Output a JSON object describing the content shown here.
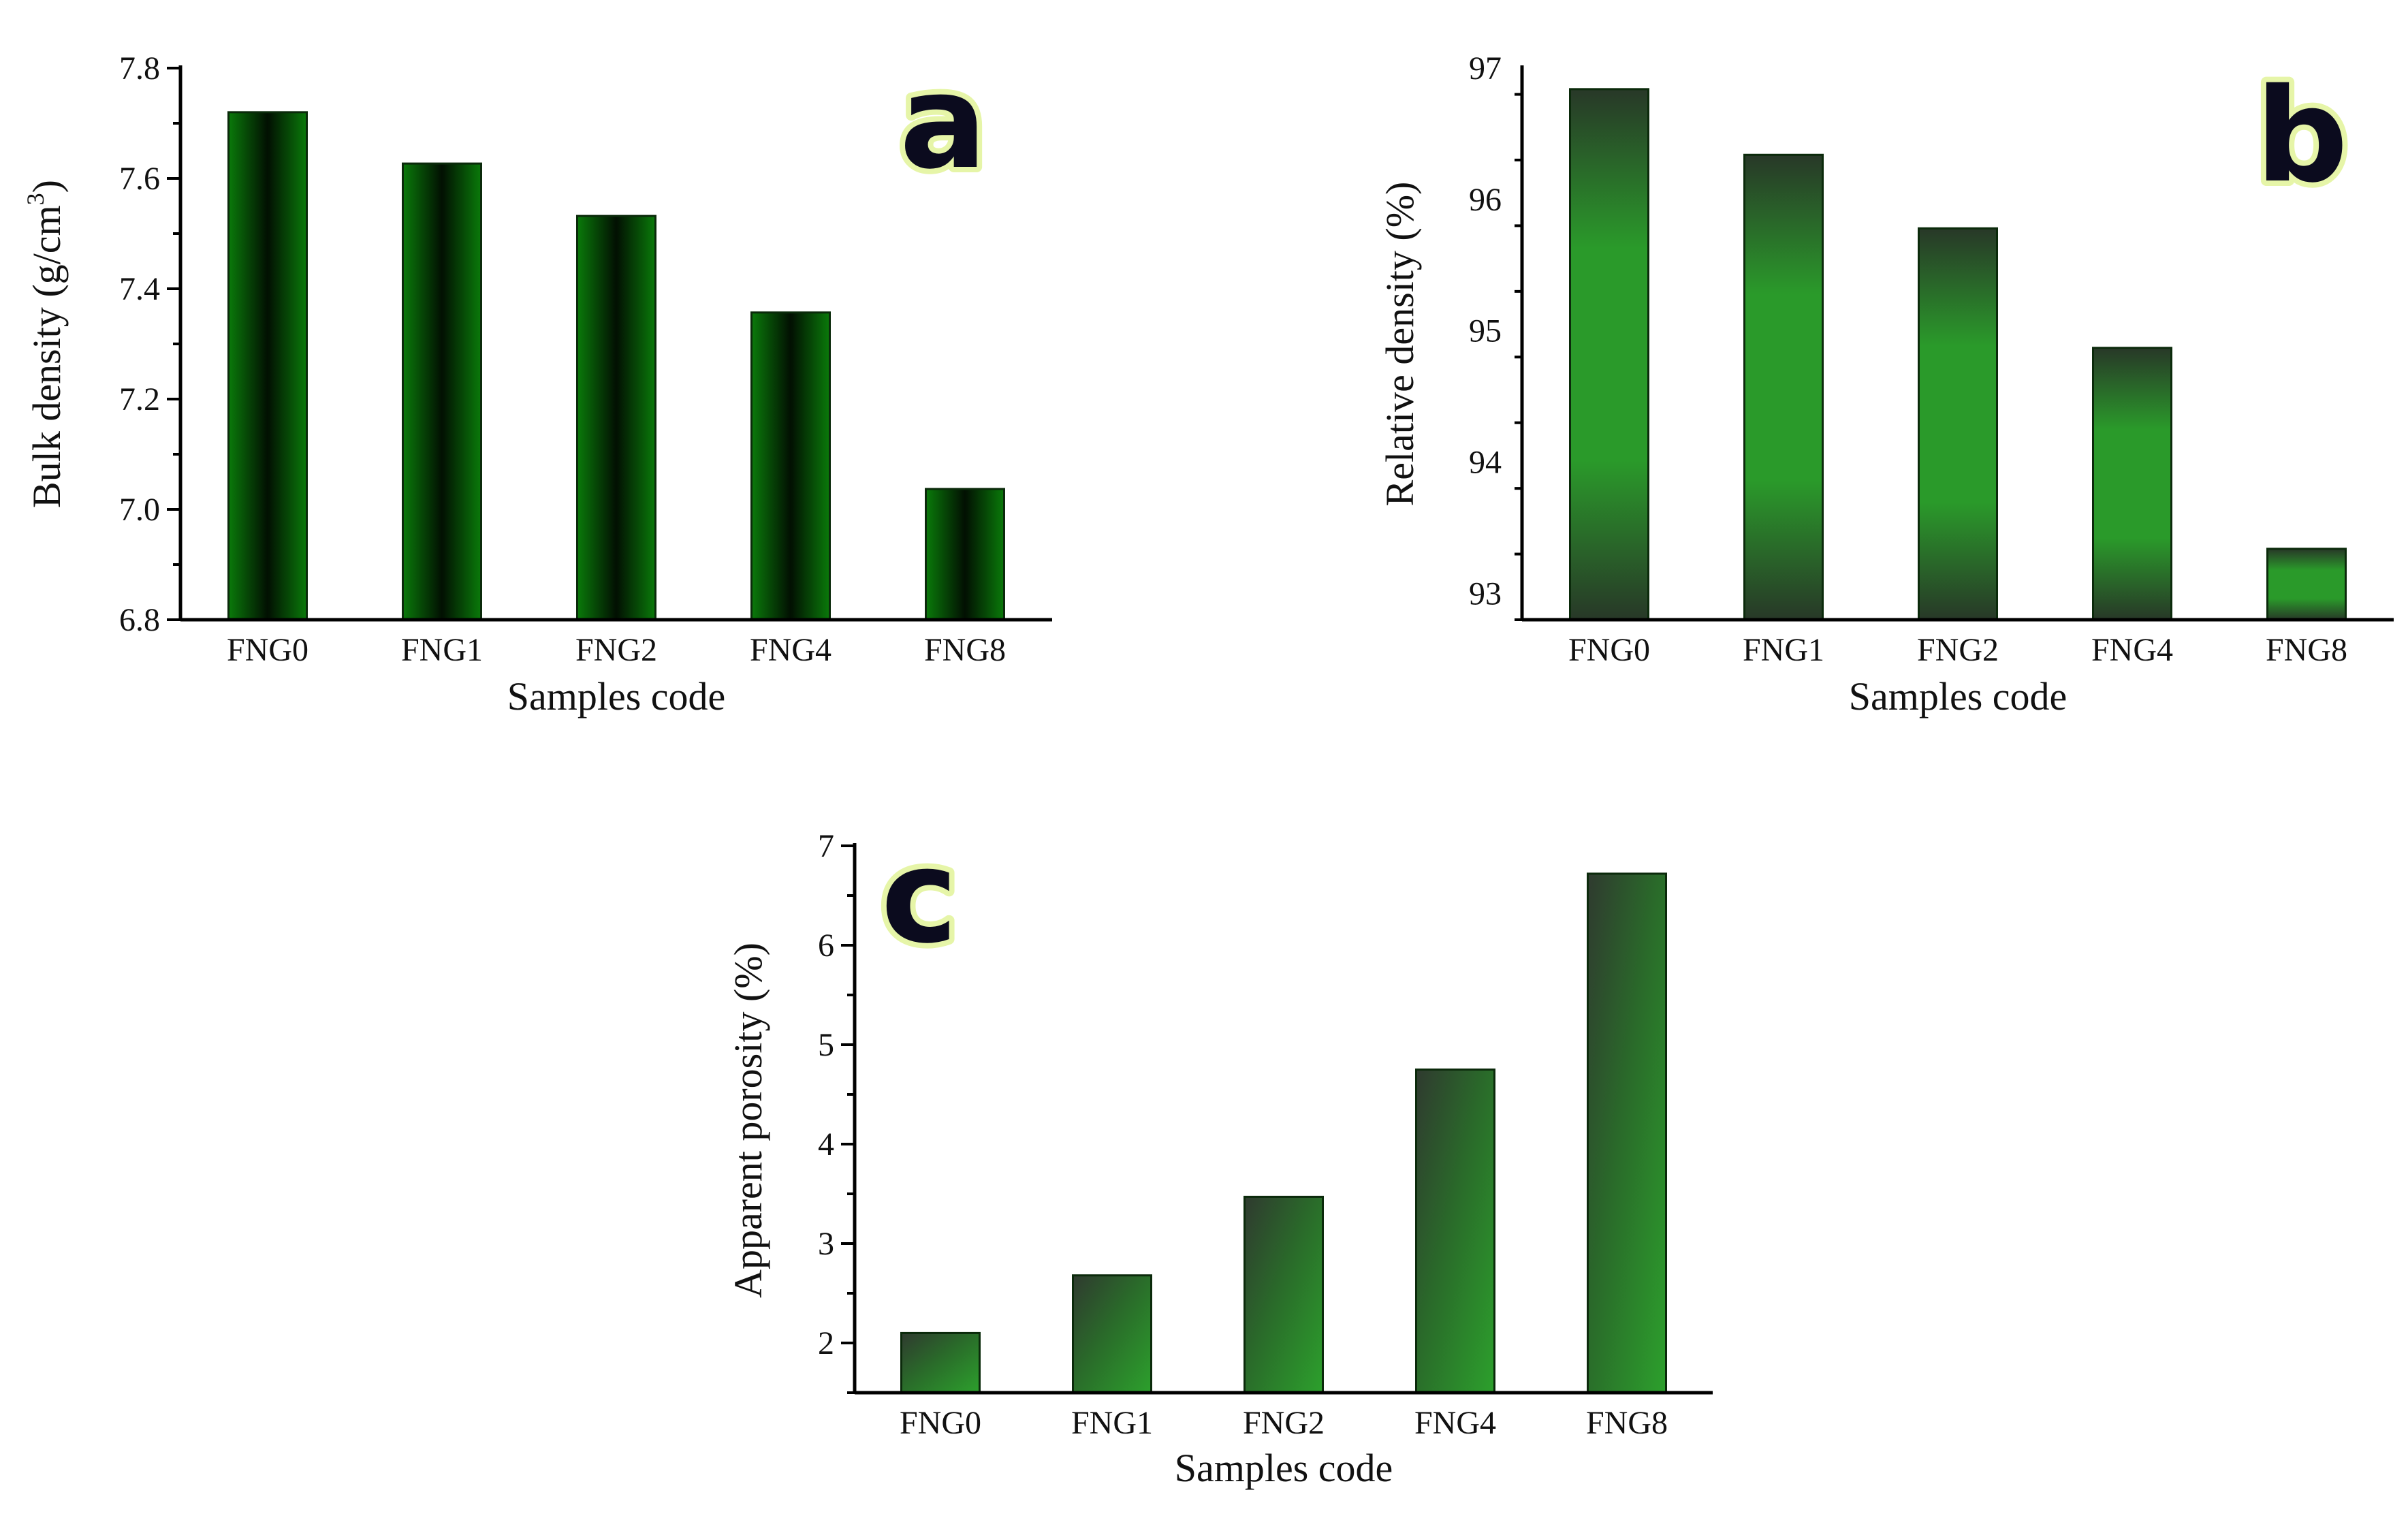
{
  "chart_data": [
    {
      "id": "a",
      "type": "bar",
      "panel_label": "a",
      "categories": [
        "FNG0",
        "FNG1",
        "FNG2",
        "FNG4",
        "FNG8"
      ],
      "values": [
        7.72,
        7.627,
        7.532,
        7.357,
        7.037
      ],
      "xlabel": "Samples code",
      "ylabel": "Bulk density (g/cm",
      "ylabel_sup": "3",
      "ylabel_end": ")",
      "ylim": [
        6.8,
        7.8
      ],
      "yticks": [
        "6.8",
        "7.0",
        "7.2",
        "7.4",
        "7.6",
        "7.8"
      ],
      "ytick_values": [
        6.8,
        7.0,
        7.2,
        7.4,
        7.6,
        7.8
      ],
      "minor_step": 0.1,
      "fill_style": "horizontal-gradient",
      "colors": {
        "edge": "#0a7a0a",
        "center": "#021002"
      }
    },
    {
      "id": "b",
      "type": "bar",
      "panel_label": "b",
      "categories": [
        "FNG0",
        "FNG1",
        "FNG2",
        "FNG4",
        "FNG8"
      ],
      "values": [
        96.84,
        96.34,
        95.78,
        94.87,
        93.34
      ],
      "xlabel": "Samples code",
      "ylabel": "Relative density (%)",
      "ylim": [
        92.8,
        97.0
      ],
      "yticks": [
        "93",
        "94",
        "95",
        "96",
        "97"
      ],
      "ytick_values": [
        93,
        94,
        95,
        96,
        97
      ],
      "minor_step": 0.5,
      "fill_style": "vertical-gradient",
      "colors": {
        "edge": "#283828",
        "center": "#2a9a2a"
      }
    },
    {
      "id": "c",
      "type": "bar",
      "panel_label": "c",
      "categories": [
        "FNG0",
        "FNG1",
        "FNG2",
        "FNG4",
        "FNG8"
      ],
      "values": [
        2.1,
        2.68,
        3.47,
        4.75,
        6.72
      ],
      "xlabel": "Samples code",
      "ylabel": "Apparent porosity (%)",
      "ylim": [
        1.5,
        7.0
      ],
      "yticks": [
        "2",
        "3",
        "4",
        "5",
        "6",
        "7"
      ],
      "ytick_values": [
        2,
        3,
        4,
        5,
        6,
        7
      ],
      "minor_step": 0.5,
      "fill_style": "diagonal-gradient",
      "colors": {
        "edge": "#2f3a2f",
        "center": "#2ca02c"
      }
    }
  ]
}
